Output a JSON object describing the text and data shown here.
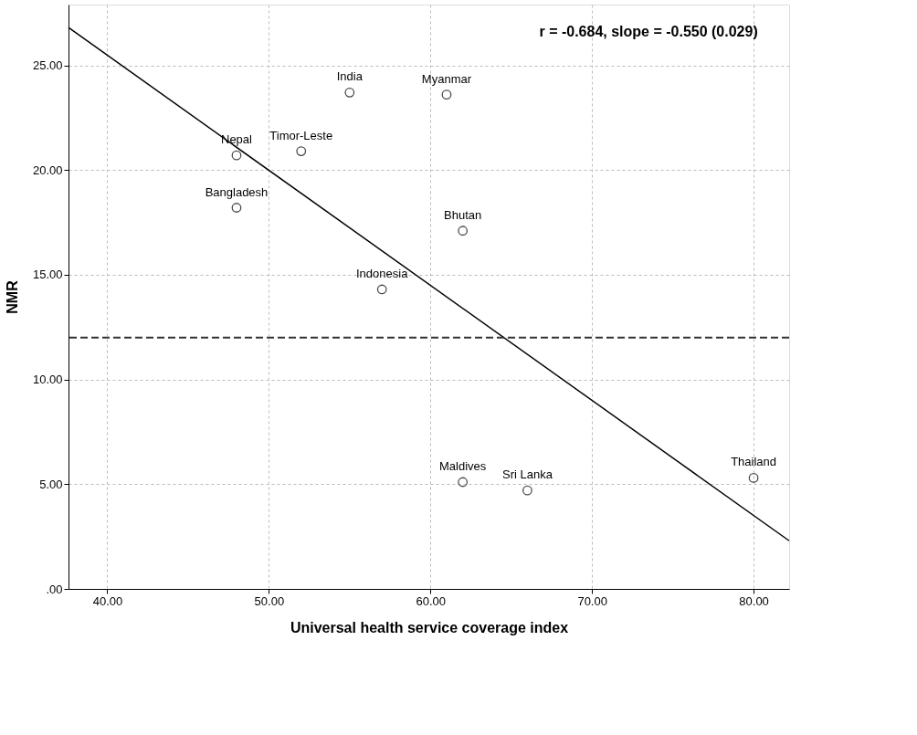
{
  "chart_data": {
    "type": "scatter",
    "xlabel": "Universal health service coverage index",
    "ylabel": "NMR",
    "xlim": [
      37.6,
      82.2
    ],
    "ylim": [
      0,
      27.9
    ],
    "xticks": [
      {
        "value": 40,
        "label": "40.00"
      },
      {
        "value": 50,
        "label": "50.00"
      },
      {
        "value": 60,
        "label": "60.00"
      },
      {
        "value": 70,
        "label": "70.00"
      },
      {
        "value": 80,
        "label": "80.00"
      }
    ],
    "yticks": [
      {
        "value": 0,
        "label": ".00"
      },
      {
        "value": 5,
        "label": "5.00"
      },
      {
        "value": 10,
        "label": "10.00"
      },
      {
        "value": 15,
        "label": "15.00"
      },
      {
        "value": 20,
        "label": "20.00"
      },
      {
        "value": 25,
        "label": "25.00"
      }
    ],
    "grid": true,
    "marker": "circle",
    "series": [
      {
        "color": "#000000",
        "x": [
          55,
          61,
          48,
          52,
          48,
          62,
          57,
          62,
          66,
          80
        ],
        "values": [
          23.7,
          23.6,
          20.7,
          20.9,
          18.2,
          17.1,
          14.3,
          5.1,
          4.7,
          5.3
        ],
        "value_labels": [
          "India",
          "Myanmar",
          "Nepal",
          "Timor-Leste",
          "Bangladesh",
          "Bhutan",
          "Indonesia",
          "Maldives",
          "Sri Lanka",
          "Thailand"
        ]
      },
      {
        "type": "line",
        "marker": "none",
        "color": "#000000",
        "x": [
          37.6,
          82.2
        ],
        "values": [
          26.8,
          2.3
        ]
      }
    ],
    "ref_lines": [
      {
        "axis": "y",
        "value": 12,
        "color": "#333333",
        "line_style": "dashed"
      }
    ],
    "annotations": [
      "r = -0.684, slope = -0.550 (0.029)"
    ]
  }
}
